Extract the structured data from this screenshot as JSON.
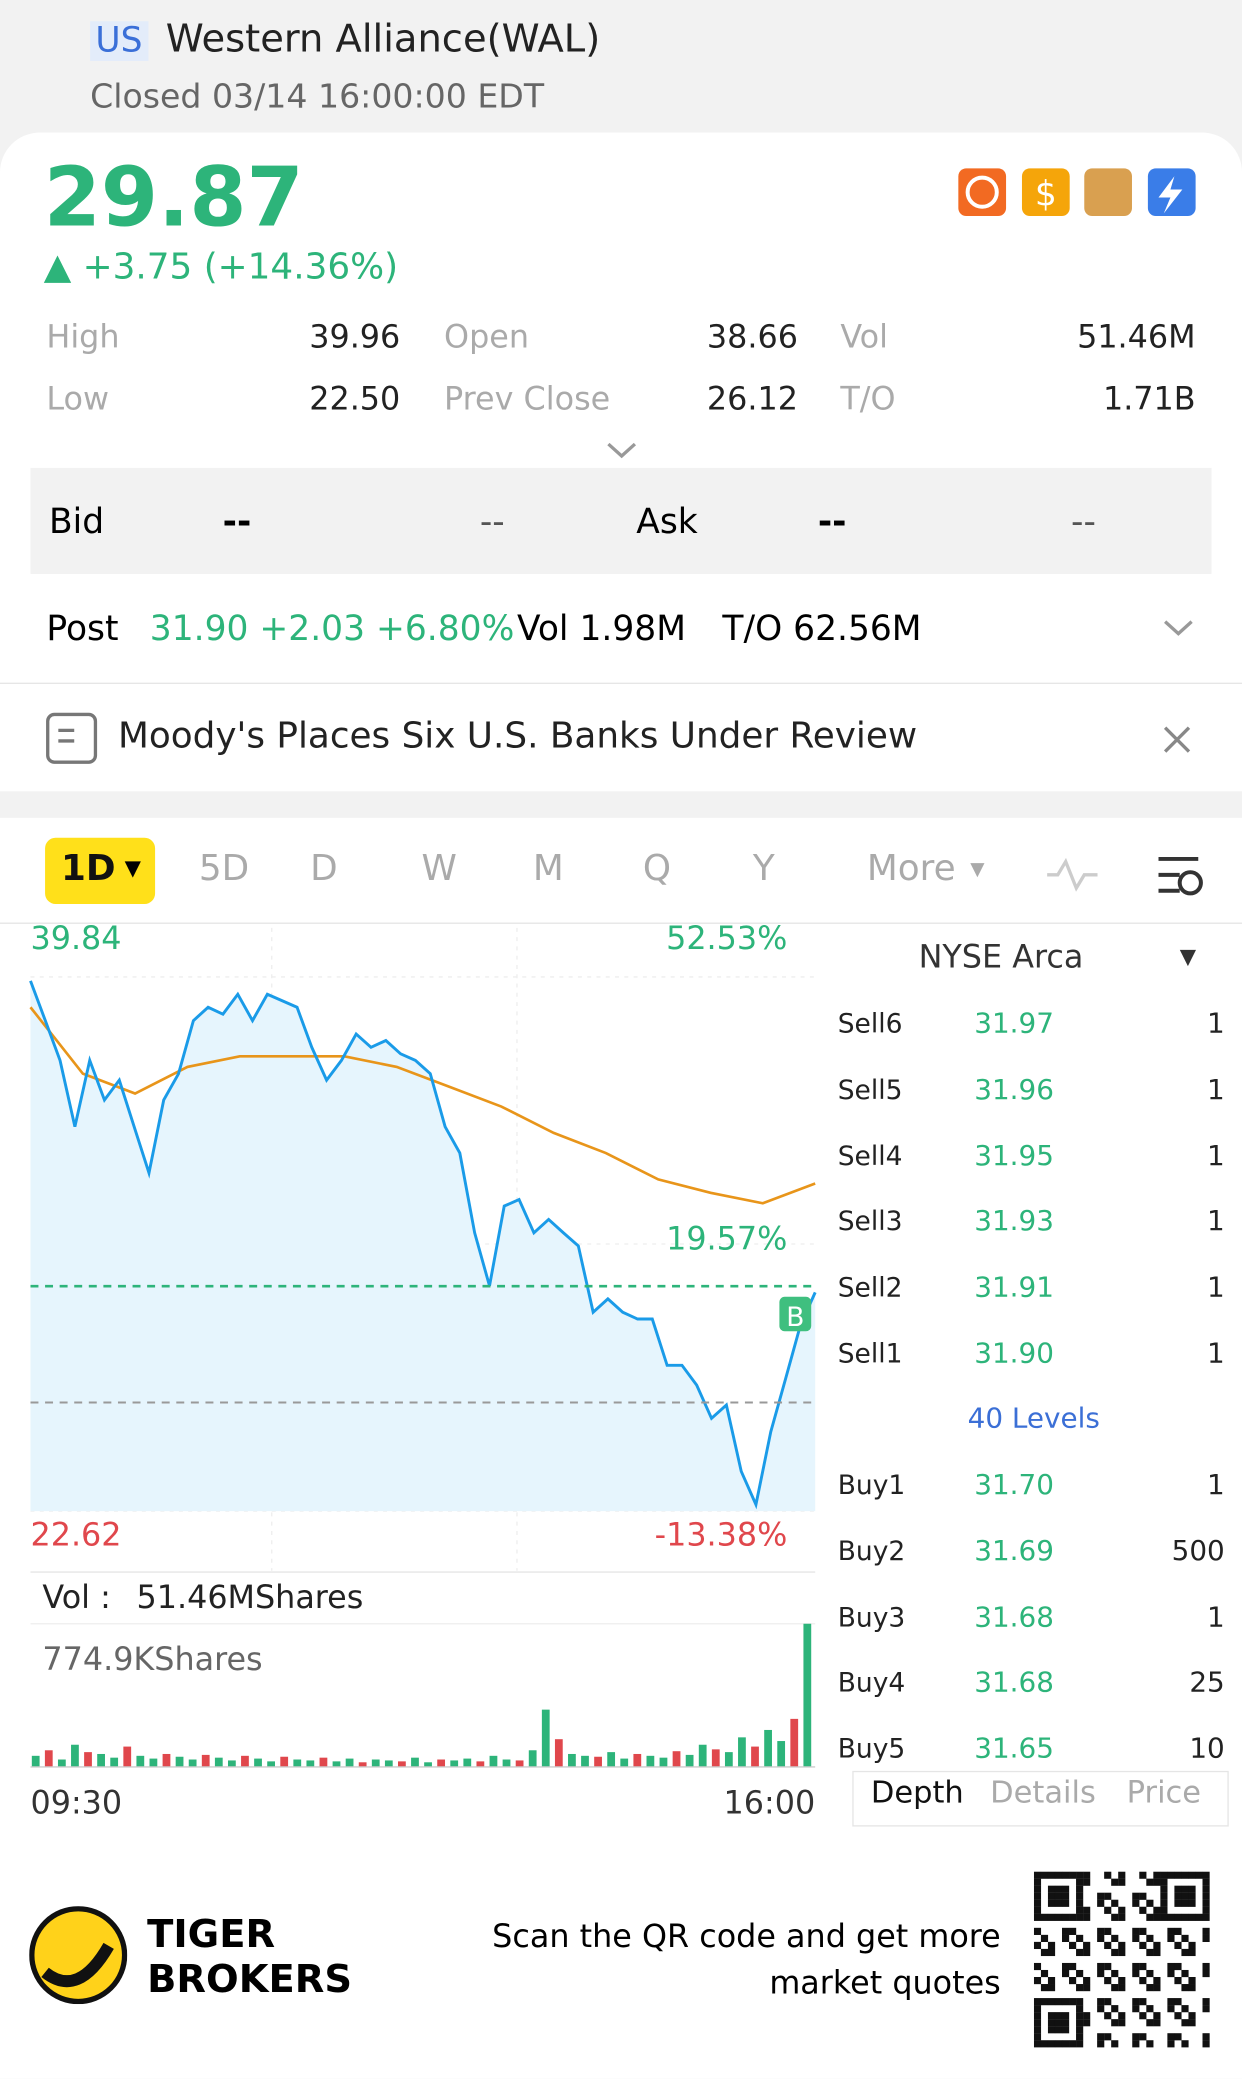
{
  "header": {
    "market": "US",
    "title": "Western Alliance(WAL)",
    "status": "Closed 03/14 16:00:00 EDT"
  },
  "quote": {
    "price": 29.87,
    "change": "+3.75 (+14.36%)",
    "stats": [
      [
        "High",
        "39.96"
      ],
      [
        "Open",
        "38.66"
      ],
      [
        "Vol",
        "51.46M"
      ],
      [
        "Low",
        "22.50"
      ],
      [
        "Prev Close",
        "26.12"
      ],
      [
        "T/O",
        "1.71B"
      ]
    ]
  },
  "bidask": {
    "bid_label": "Bid",
    "bid": "--",
    "bid_size": "--",
    "ask_label": "Ask",
    "ask": "--",
    "ask_size": "--"
  },
  "post": {
    "label": "Post",
    "price": "31.90 +2.03 +6.80%",
    "vol": "Vol 1.98M",
    "turnover": "T/O 62.56M"
  },
  "news": {
    "headline": "Moody's Places Six U.S. Banks Under Review"
  },
  "tabs": [
    "1D",
    "5D",
    "D",
    "W",
    "M",
    "Q",
    "Y",
    "More"
  ],
  "chart": {
    "type": "line",
    "ylim": [
      22.62,
      39.84
    ],
    "yticks": [
      22.62,
      31.23,
      39.84
    ],
    "pct_labels": [
      "-13.38%",
      "19.57%",
      "52.53%"
    ],
    "price": {
      "color": "#1a9be8",
      "values": [
        39.71,
        38.43,
        37.15,
        35.01,
        37.15,
        35.87,
        36.51,
        35.01,
        33.52,
        35.87,
        36.72,
        38.43,
        38.86,
        38.64,
        39.28,
        38.43,
        39.28,
        39.07,
        38.86,
        37.57,
        36.51,
        37.15,
        38.0,
        37.57,
        37.79,
        37.36,
        37.15,
        36.72,
        35.01,
        34.16,
        31.59,
        29.88,
        32.45,
        32.66,
        31.59,
        32.02,
        31.59,
        31.17,
        29.03,
        29.46,
        29.03,
        28.81,
        28.81,
        27.32,
        27.32,
        26.68,
        25.61,
        26.04,
        23.9,
        22.83,
        25.18,
        26.89,
        28.6,
        29.67
      ]
    },
    "avg": {
      "color": "#e8951a",
      "values": [
        38.86,
        36.72,
        36.08,
        36.94,
        37.28,
        37.28,
        37.28,
        36.94,
        36.3,
        35.66,
        34.81,
        34.16,
        33.31,
        32.88,
        32.54,
        33.18
      ]
    },
    "marker": "B",
    "x_labels": [
      "09:30",
      "16:00"
    ],
    "volume": {
      "label": "Vol :",
      "total": "51.46MShares",
      "max_label": "774.9KShares",
      "ylim": [
        0,
        774.9
      ],
      "values": [
        60,
        90,
        40,
        120,
        80,
        70,
        50,
        110,
        60,
        45,
        70,
        55,
        40,
        65,
        50,
        35,
        60,
        45,
        30,
        55,
        40,
        35,
        50,
        30,
        45,
        25,
        40,
        35,
        30,
        50,
        25,
        40,
        35,
        45,
        30,
        60,
        40,
        35,
        90,
        310,
        150,
        70,
        60,
        55,
        80,
        45,
        70,
        60,
        50,
        85,
        65,
        120,
        95,
        80,
        160,
        110,
        200,
        140,
        260,
        774.9
      ]
    }
  },
  "orderbook": {
    "exchange": "NYSE Arca",
    "levels_link": "40 Levels",
    "sell": [
      [
        "Sell6",
        "31.97",
        "1"
      ],
      [
        "Sell5",
        "31.96",
        "1"
      ],
      [
        "Sell4",
        "31.95",
        "1"
      ],
      [
        "Sell3",
        "31.93",
        "1"
      ],
      [
        "Sell2",
        "31.91",
        "1"
      ],
      [
        "Sell1",
        "31.90",
        "1"
      ]
    ],
    "buy": [
      [
        "Buy1",
        "31.70",
        "1"
      ],
      [
        "Buy2",
        "31.69",
        "500"
      ],
      [
        "Buy3",
        "31.68",
        "1"
      ],
      [
        "Buy4",
        "31.68",
        "25"
      ],
      [
        "Buy5",
        "31.65",
        "10"
      ]
    ],
    "tabs": [
      "Depth",
      "Details",
      "Price"
    ]
  },
  "footer": {
    "brand": [
      "TIGER",
      "BROKERS"
    ],
    "promo": [
      "Scan the QR code and get more",
      "market quotes"
    ]
  }
}
